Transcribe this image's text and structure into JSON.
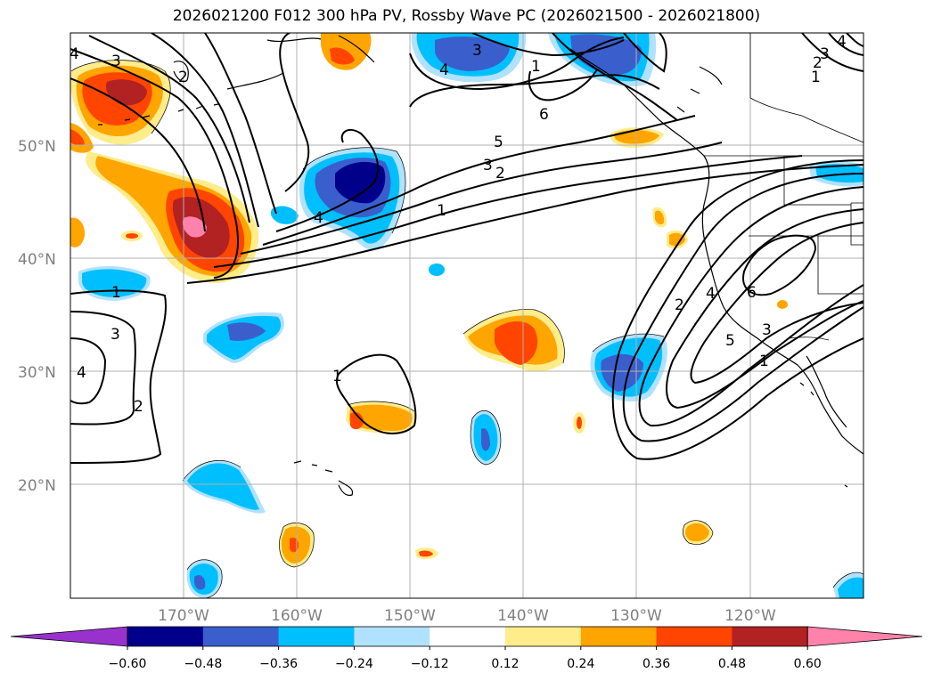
{
  "title": "2026021200 F012 300 hPa PV, Rossby Wave PC (2026021500 - 2026021800)",
  "lat_labels": [
    "50°N",
    "40°N",
    "30°N",
    "20°N"
  ],
  "lon_labels": [
    "170°W",
    "160°W",
    "150°W",
    "140°W",
    "130°W",
    "120°W"
  ],
  "colorbar": {
    "ticks": [
      "−0.60",
      "−0.48",
      "−0.36",
      "−0.24",
      "−0.12",
      "0.12",
      "0.24",
      "0.36",
      "0.48",
      "0.60"
    ],
    "colors": [
      "#9932cc",
      "#00008b",
      "#3a5fcd",
      "#00bfff",
      "#b0e2ff",
      "#ffffff",
      "#ffec8b",
      "#ffa500",
      "#ff4500",
      "#b22222",
      "#ff82ab"
    ]
  },
  "contour_labels": [
    "3",
    "2",
    "4",
    "3",
    "4",
    "1",
    "6",
    "5",
    "3",
    "2",
    "1",
    "4",
    "1",
    "3",
    "4",
    "2",
    "1",
    "2",
    "4",
    "6",
    "5",
    "3",
    "1",
    "4",
    "3",
    "2",
    "1"
  ]
}
